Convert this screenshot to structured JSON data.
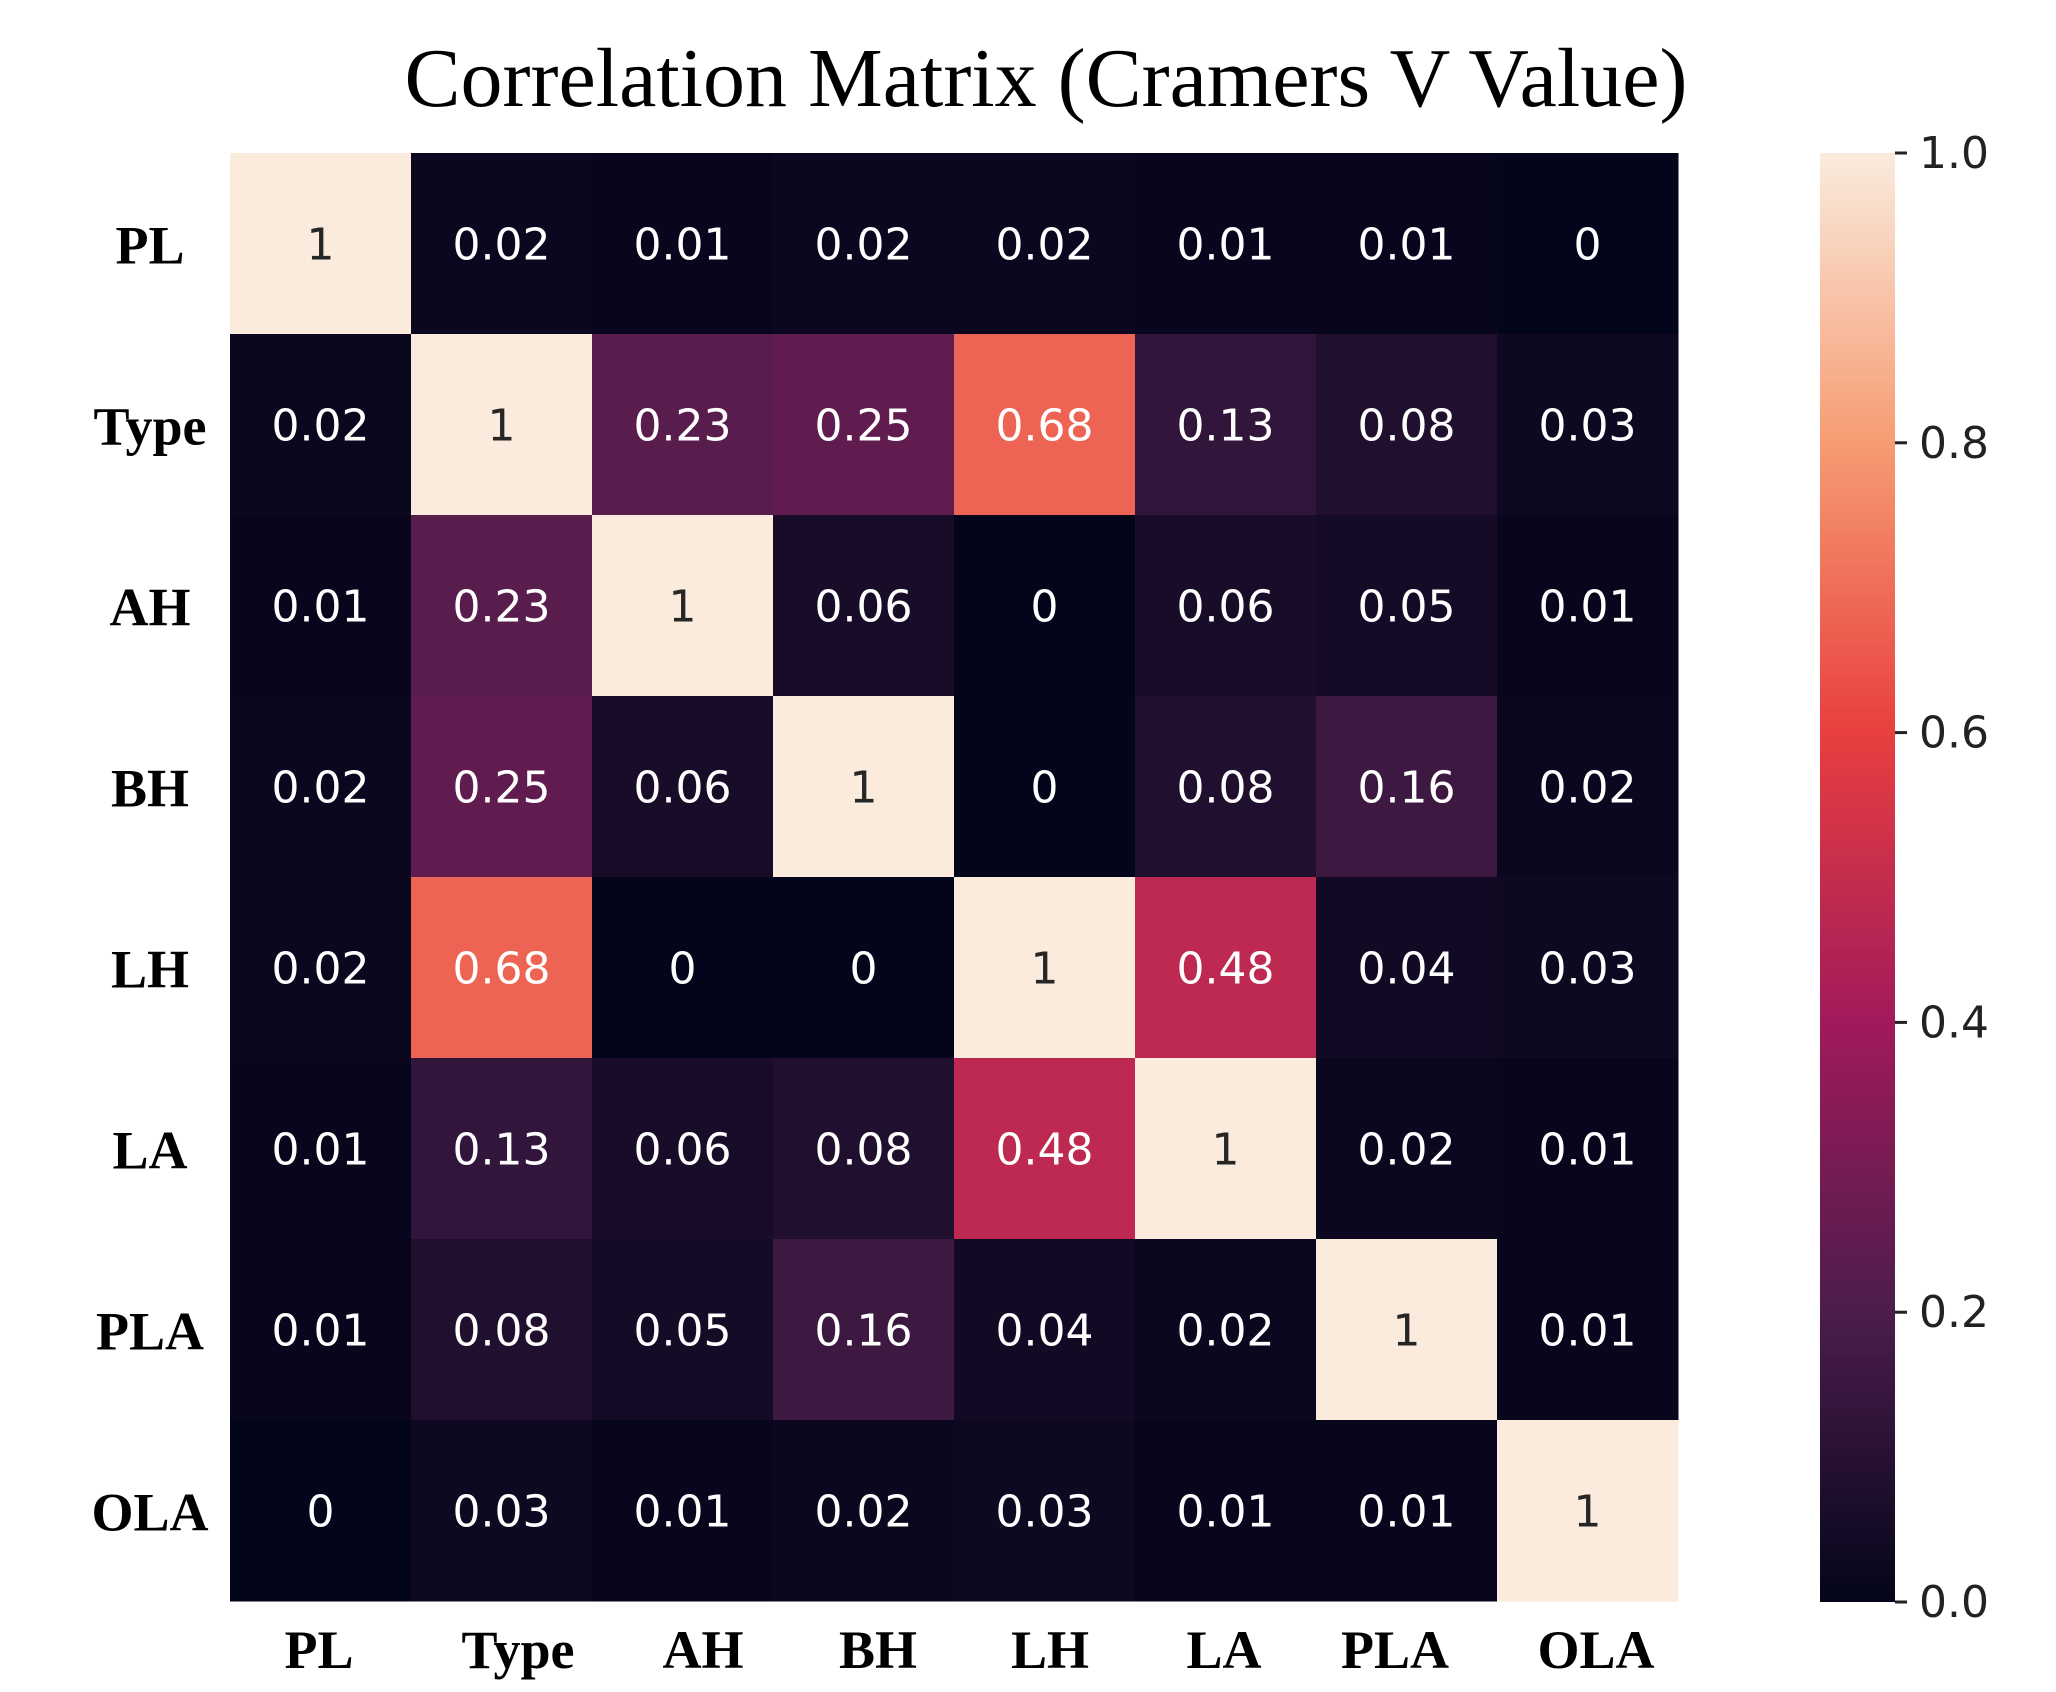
{
  "chart_data": {
    "type": "heatmap",
    "title": "Correlation Matrix (Cramers V Value)",
    "rows": [
      "PL",
      "Type",
      "AH",
      "BH",
      "LH",
      "LA",
      "PLA",
      "OLA"
    ],
    "columns": [
      "PL",
      "Type",
      "AH",
      "BH",
      "LH",
      "LA",
      "PLA",
      "OLA"
    ],
    "values": [
      [
        1,
        0.02,
        0.01,
        0.02,
        0.02,
        0.01,
        0.01,
        0
      ],
      [
        0.02,
        1,
        0.23,
        0.25,
        0.68,
        0.13,
        0.08,
        0.03
      ],
      [
        0.01,
        0.23,
        1,
        0.06,
        0,
        0.06,
        0.05,
        0.01
      ],
      [
        0.02,
        0.25,
        0.06,
        1,
        0,
        0.08,
        0.16,
        0.02
      ],
      [
        0.02,
        0.68,
        0,
        0,
        1,
        0.48,
        0.04,
        0.03
      ],
      [
        0.01,
        0.13,
        0.06,
        0.08,
        0.48,
        1,
        0.02,
        0.01
      ],
      [
        0.01,
        0.08,
        0.05,
        0.16,
        0.04,
        0.02,
        1,
        0.01
      ],
      [
        0,
        0.03,
        0.01,
        0.02,
        0.03,
        0.01,
        0.01,
        1
      ]
    ],
    "colorbar": {
      "range": [
        0,
        1
      ],
      "ticks": [
        "0.0",
        "0.2",
        "0.4",
        "0.6",
        "0.8",
        "1.0"
      ],
      "colormap": "rocket",
      "stops": [
        "#03051a",
        "#4c1d4b",
        "#a11a5b",
        "#e83f3f",
        "#f69c73",
        "#faebdd"
      ]
    }
  }
}
